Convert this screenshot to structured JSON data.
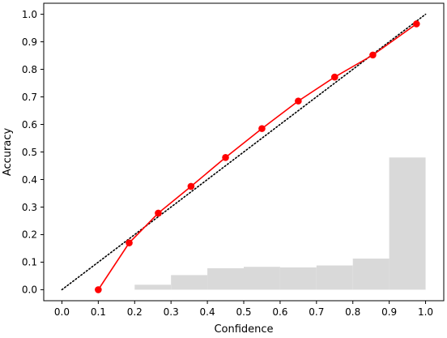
{
  "chart_data": {
    "type": "line",
    "xlabel": "Confidence",
    "ylabel": "Accuracy",
    "xlim": [
      -0.05,
      1.05
    ],
    "ylim": [
      -0.04,
      1.04
    ],
    "xticks": [
      0.0,
      0.1,
      0.2,
      0.3,
      0.4,
      0.5,
      0.6,
      0.7,
      0.8,
      0.9,
      1.0
    ],
    "xtick_labels": [
      "0.0",
      "0.1",
      "0.2",
      "0.3",
      "0.4",
      "0.5",
      "0.6",
      "0.7",
      "0.8",
      "0.9",
      "1.0"
    ],
    "yticks": [
      0.0,
      0.1,
      0.2,
      0.3,
      0.4,
      0.5,
      0.6,
      0.7,
      0.8,
      0.9,
      1.0
    ],
    "ytick_labels": [
      "0.0",
      "0.1",
      "0.2",
      "0.3",
      "0.4",
      "0.5",
      "0.6",
      "0.7",
      "0.8",
      "0.9",
      "1.0"
    ],
    "grid": false,
    "legend": "none",
    "reliability_curve": {
      "color": "#ff0000",
      "marker": "circle",
      "x": [
        0.1,
        0.185,
        0.265,
        0.355,
        0.45,
        0.55,
        0.65,
        0.75,
        0.855,
        0.975
      ],
      "y": [
        0.0,
        0.17,
        0.278,
        0.375,
        0.48,
        0.585,
        0.685,
        0.772,
        0.852,
        0.965
      ]
    },
    "perfect_calibration": {
      "color": "#000000",
      "style": "dotted",
      "x": [
        0.0,
        1.0
      ],
      "y": [
        0.0,
        1.0
      ]
    },
    "histogram": {
      "color": "#d9d9d9",
      "bins": [
        {
          "start": 0.2,
          "end": 0.3,
          "value": 0.018
        },
        {
          "start": 0.3,
          "end": 0.4,
          "value": 0.053
        },
        {
          "start": 0.4,
          "end": 0.5,
          "value": 0.078
        },
        {
          "start": 0.5,
          "end": 0.6,
          "value": 0.083
        },
        {
          "start": 0.6,
          "end": 0.7,
          "value": 0.081
        },
        {
          "start": 0.7,
          "end": 0.8,
          "value": 0.088
        },
        {
          "start": 0.8,
          "end": 0.9,
          "value": 0.113
        },
        {
          "start": 0.9,
          "end": 1.0,
          "value": 0.48
        }
      ]
    }
  }
}
